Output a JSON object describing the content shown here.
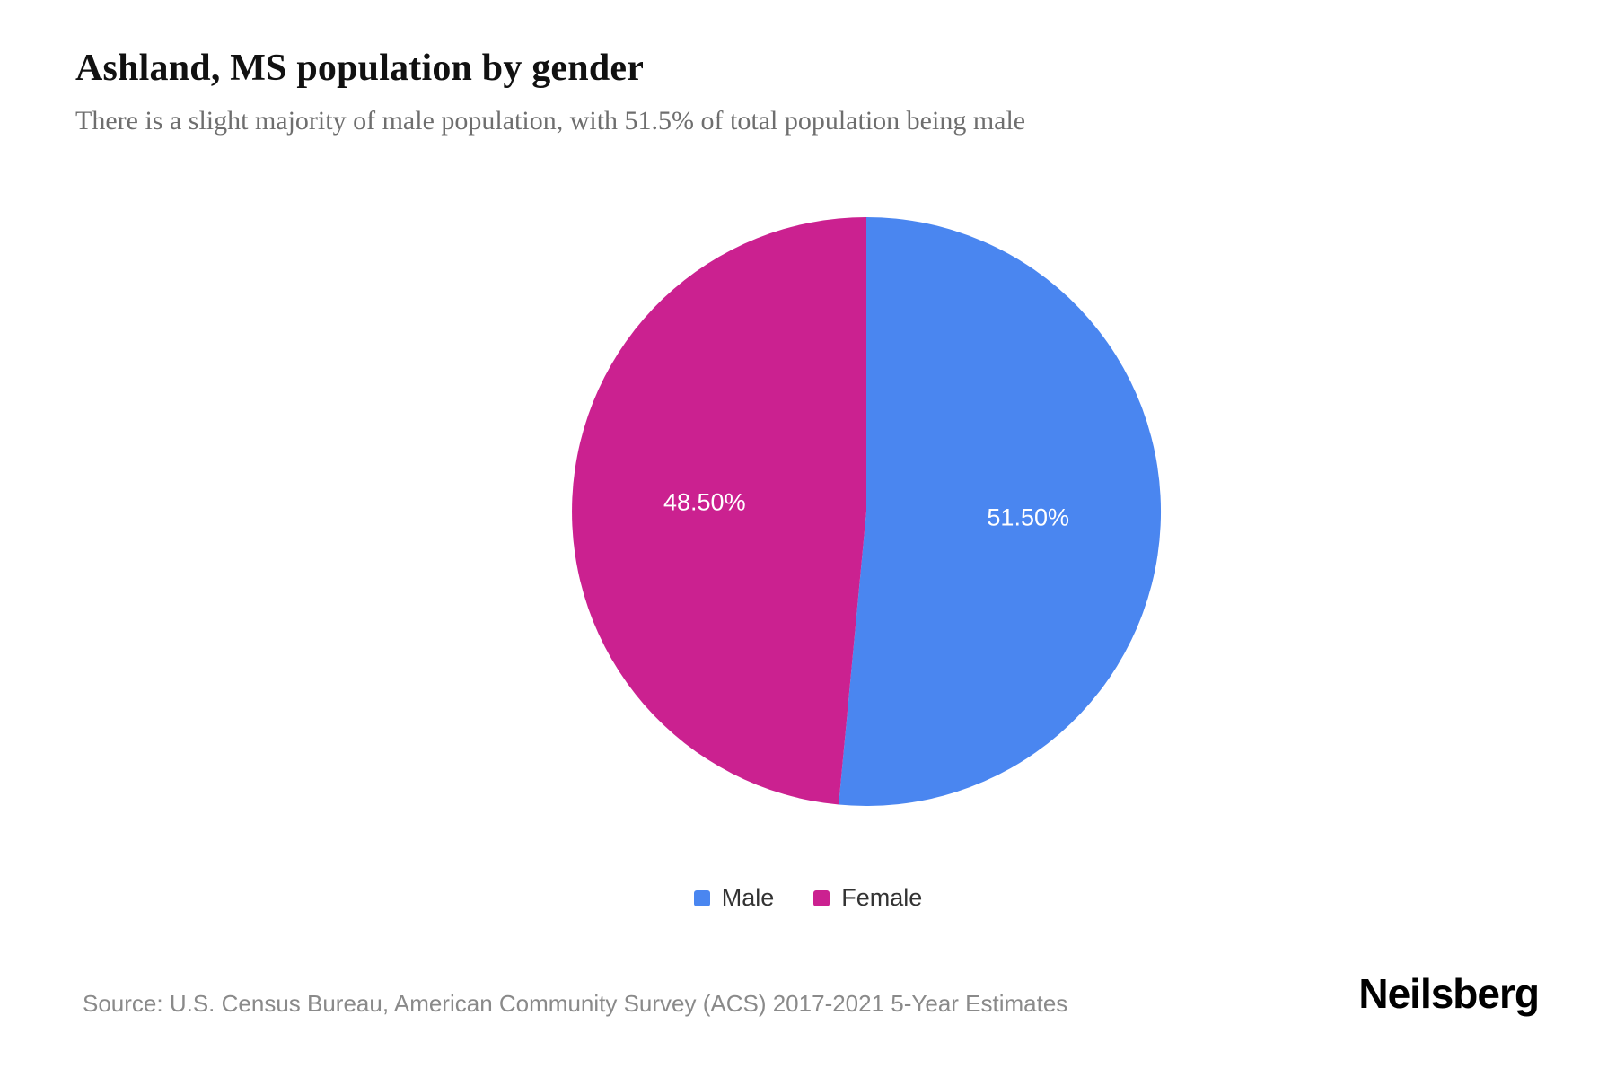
{
  "page": {
    "title": "Ashland, MS population by gender",
    "subtitle": "There is a slight majority of male population, with 51.5% of total population being male",
    "source": "Source: U.S. Census Bureau, American Community Survey (ACS) 2017-2021 5-Year Estimates",
    "brand": "Neilsberg"
  },
  "chart_data": {
    "type": "pie",
    "title": "Ashland, MS population by gender",
    "categories": [
      "Male",
      "Female"
    ],
    "values": [
      51.5,
      48.5
    ],
    "slice_labels": [
      "51.50%",
      "48.50%"
    ],
    "colors": [
      "#4a86f0",
      "#cb2190"
    ],
    "slice_label_color": "#ffffff",
    "start_angle_deg": 0,
    "direction": "clockwise",
    "legend_position": "bottom"
  }
}
